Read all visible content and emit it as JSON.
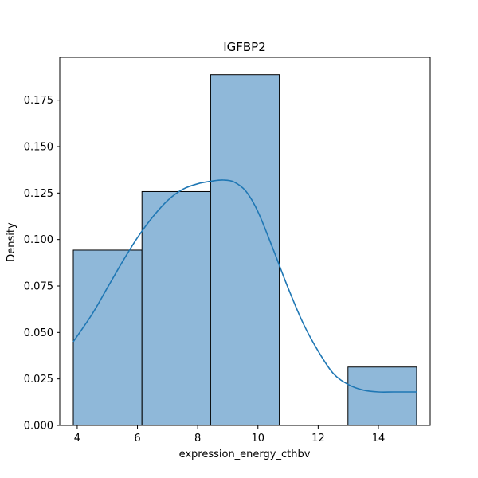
{
  "chart_data": {
    "type": "bar",
    "title": "IGFBP2",
    "xlabel": "expression_energy_cthbv",
    "ylabel": "Density",
    "xlim": [
      3.42,
      15.72
    ],
    "ylim": [
      0,
      0.198
    ],
    "xticks": [
      4,
      6,
      8,
      10,
      12,
      14
    ],
    "yticks": [
      "0.000",
      "0.025",
      "0.050",
      "0.075",
      "0.100",
      "0.125",
      "0.150",
      "0.175"
    ],
    "bins": [
      {
        "x0": 3.87,
        "x1": 6.15,
        "density": 0.0943
      },
      {
        "x0": 6.15,
        "x1": 8.43,
        "density": 0.1258
      },
      {
        "x0": 8.43,
        "x1": 10.71,
        "density": 0.1887
      },
      {
        "x0": 10.71,
        "x1": 12.99,
        "density": 0.0
      },
      {
        "x0": 12.99,
        "x1": 15.27,
        "density": 0.0314
      }
    ],
    "kde": {
      "x": [
        3.87,
        4.5,
        5.0,
        5.5,
        6.0,
        6.5,
        7.0,
        7.5,
        8.0,
        8.5,
        8.85,
        9.2,
        9.6,
        10.0,
        10.5,
        11.0,
        11.5,
        12.0,
        12.5,
        13.0,
        13.5,
        14.0,
        14.5,
        15.0,
        15.27
      ],
      "y": [
        0.045,
        0.06,
        0.074,
        0.088,
        0.101,
        0.112,
        0.121,
        0.127,
        0.13,
        0.1315,
        0.132,
        0.131,
        0.126,
        0.115,
        0.095,
        0.074,
        0.055,
        0.04,
        0.028,
        0.022,
        0.019,
        0.018,
        0.018,
        0.018,
        0.018
      ]
    },
    "bar_color": "#8fb8d9",
    "edge_color": "#000000",
    "line_color": "#1f77b4",
    "grid": false,
    "legend": "none"
  }
}
